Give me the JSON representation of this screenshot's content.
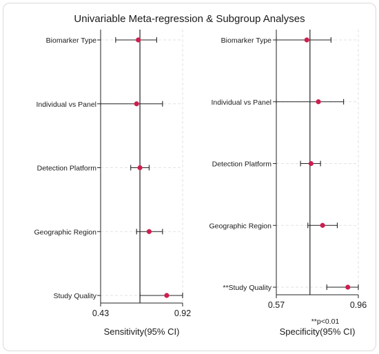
{
  "chart_data": [
    {
      "type": "forest",
      "title": "Univariable Meta-regression & Subgroup Analyses",
      "panel": "sensitivity",
      "xlabel": "Sensitivity(95% CI)",
      "xlim": [
        0.43,
        0.92
      ],
      "xticks": [
        0.43,
        0.92
      ],
      "reference_line": 0.665,
      "grid": true,
      "categories": [
        "Biomarker Type",
        "Individual vs Panel",
        "Detection Platform",
        "Geographic Region",
        "Study Quality"
      ],
      "estimates": [
        0.655,
        0.645,
        0.665,
        0.72,
        0.825
      ],
      "ci_lower": [
        0.52,
        0.43,
        0.61,
        0.645,
        0.665
      ],
      "ci_upper": [
        0.765,
        0.8,
        0.72,
        0.8,
        0.92
      ]
    },
    {
      "type": "forest",
      "panel": "specificity",
      "xlabel": "Specificity(95% CI)",
      "xlim": [
        0.57,
        0.96
      ],
      "xticks": [
        0.57,
        0.96
      ],
      "reference_line": 0.73,
      "grid": true,
      "categories": [
        "Biomarker Type",
        "Individual vs Panel",
        "Detection Platform",
        "Geographic Region",
        "**Study Quality"
      ],
      "estimates": [
        0.715,
        0.77,
        0.735,
        0.79,
        0.91
      ],
      "ci_lower": [
        0.57,
        0.57,
        0.685,
        0.72,
        0.81
      ],
      "ci_upper": [
        0.83,
        0.89,
        0.78,
        0.86,
        0.96
      ],
      "footnote": "**p<0.01"
    }
  ],
  "style": {
    "marker_color": "#cc1f4f",
    "line_color": "#222222",
    "grid_color": "#e2e2e2"
  }
}
